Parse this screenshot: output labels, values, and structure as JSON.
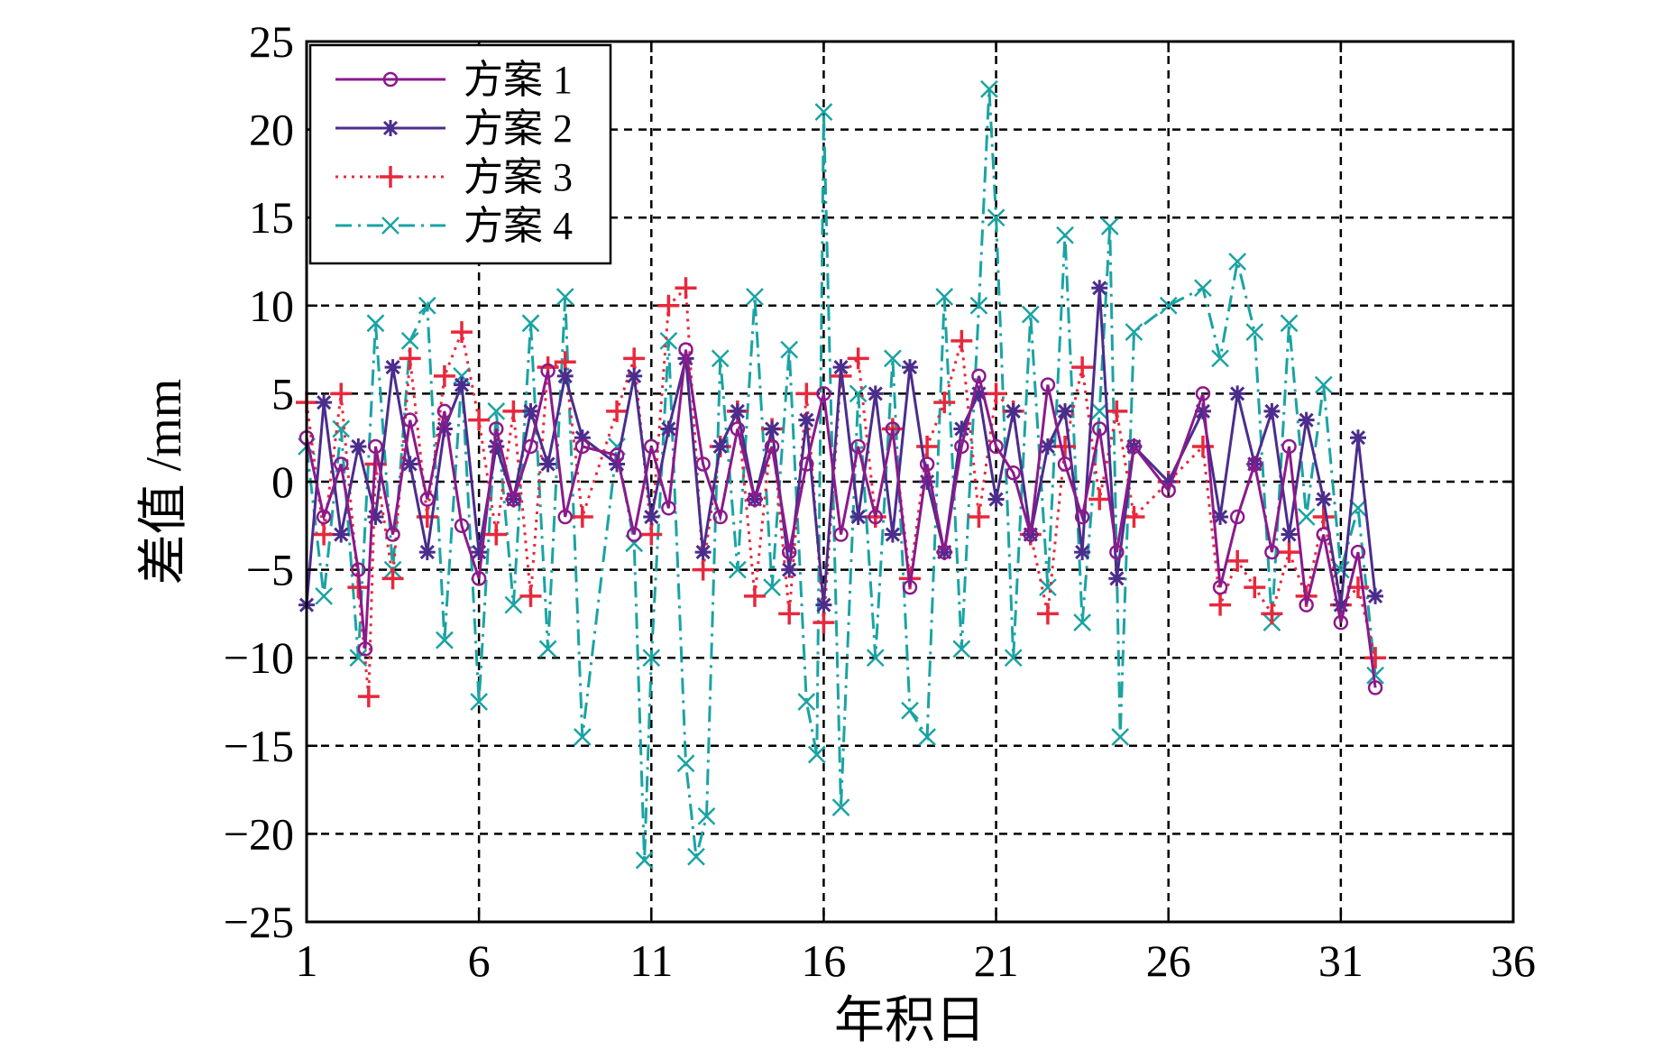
{
  "chart_data": {
    "type": "line",
    "xlabel": "年积日",
    "ylabel": "差值 /mm",
    "xlim": [
      1,
      36
    ],
    "ylim": [
      -25,
      25
    ],
    "xticks": [
      1,
      6,
      11,
      16,
      21,
      26,
      31,
      36
    ],
    "yticks": [
      -25,
      -20,
      -15,
      -10,
      -5,
      0,
      5,
      10,
      15,
      20,
      25
    ],
    "x_tick_labels": [
      "1",
      "6",
      "11",
      "16",
      "21",
      "26",
      "31",
      "36"
    ],
    "y_tick_labels": [
      "−25",
      "−20",
      "−15",
      "−10",
      "−5",
      "0",
      "5",
      "10",
      "15",
      "20",
      "25"
    ],
    "grid": true,
    "legend_position": "top-left",
    "series": [
      {
        "name": "方案 1",
        "color": "#8B1A8B",
        "marker": "circle",
        "line_style": "solid",
        "x": [
          1.0,
          1.5,
          2.0,
          2.5,
          2.7,
          3.0,
          3.5,
          4.0,
          4.5,
          5.0,
          5.5,
          6.0,
          6.5,
          7.0,
          7.5,
          8.0,
          8.5,
          9.0,
          10.0,
          10.5,
          11.0,
          11.5,
          12.0,
          12.5,
          13.0,
          13.5,
          14.0,
          14.5,
          15.0,
          15.5,
          16.0,
          16.5,
          17.0,
          17.5,
          18.0,
          18.5,
          19.0,
          19.5,
          20.0,
          20.5,
          21.0,
          21.5,
          22.0,
          22.5,
          23.0,
          23.5,
          24.0,
          24.5,
          25.0,
          26.0,
          27.0,
          27.5,
          28.0,
          28.5,
          29.0,
          29.5,
          30.0,
          30.5,
          31.0,
          31.5,
          32.0
        ],
        "y": [
          2.5,
          -2.0,
          1.0,
          -5.0,
          -9.5,
          2.0,
          -3.0,
          3.5,
          -1.0,
          4.0,
          -2.5,
          -5.5,
          3.0,
          -1.0,
          2.0,
          6.3,
          -2.0,
          2.0,
          1.5,
          -3.0,
          2.0,
          -1.5,
          7.5,
          1.0,
          -2.0,
          3.0,
          -1.0,
          2.0,
          -4.0,
          1.0,
          5.0,
          -3.0,
          2.0,
          -2.0,
          3.0,
          -6.0,
          1.0,
          -4.0,
          2.0,
          6.0,
          2.0,
          0.5,
          -3.0,
          5.5,
          1.0,
          -2.0,
          3.0,
          -4.0,
          2.0,
          -0.5,
          5.0,
          -6.0,
          -2.0,
          1.0,
          -4.0,
          2.0,
          -7.0,
          -3.0,
          -8.0,
          -4.0,
          -11.7
        ]
      },
      {
        "name": "方案 2",
        "color": "#4B2D8C",
        "marker": "star",
        "line_style": "solid",
        "x": [
          1.0,
          1.5,
          2.0,
          2.5,
          3.0,
          3.5,
          4.0,
          4.5,
          5.0,
          5.5,
          6.0,
          6.5,
          7.0,
          7.5,
          8.0,
          8.5,
          9.0,
          10.0,
          10.5,
          11.0,
          11.5,
          12.0,
          12.5,
          13.0,
          13.5,
          14.0,
          14.5,
          15.0,
          15.5,
          16.0,
          16.5,
          17.0,
          17.5,
          18.0,
          18.5,
          19.0,
          19.5,
          20.0,
          20.5,
          21.0,
          21.5,
          22.0,
          22.5,
          23.0,
          23.5,
          24.0,
          24.5,
          25.0,
          26.0,
          27.0,
          27.5,
          28.0,
          28.5,
          29.0,
          29.5,
          30.0,
          30.5,
          31.0,
          31.5,
          32.0
        ],
        "y": [
          -7.0,
          4.5,
          -3.0,
          2.0,
          -2.0,
          6.5,
          1.0,
          -4.0,
          3.0,
          5.5,
          -4.0,
          2.0,
          -1.0,
          4.0,
          1.0,
          6.0,
          2.5,
          1.0,
          6.0,
          -2.0,
          3.0,
          7.0,
          -4.0,
          2.0,
          4.0,
          -1.0,
          3.0,
          -5.0,
          3.5,
          -7.0,
          6.5,
          -2.0,
          5.0,
          -3.0,
          6.5,
          0.0,
          -4.0,
          3.0,
          5.0,
          -1.0,
          4.0,
          -3.0,
          2.0,
          4.0,
          -4.0,
          11.0,
          -5.5,
          2.0,
          0.0,
          4.0,
          -2.0,
          5.0,
          1.0,
          4.0,
          -3.0,
          3.5,
          -1.0,
          -7.0,
          2.5,
          -6.5
        ]
      },
      {
        "name": "方案 3",
        "color": "#E8283C",
        "marker": "plus",
        "line_style": "dotted",
        "x": [
          1.0,
          1.5,
          2.0,
          2.5,
          2.8,
          3.0,
          3.5,
          4.0,
          4.5,
          5.0,
          5.5,
          6.0,
          6.5,
          7.0,
          7.5,
          8.0,
          8.5,
          9.0,
          10.0,
          10.5,
          11.0,
          11.5,
          12.0,
          12.5,
          13.0,
          13.5,
          14.0,
          14.5,
          15.0,
          15.5,
          16.0,
          16.5,
          17.0,
          17.5,
          18.0,
          18.5,
          19.0,
          19.5,
          20.0,
          20.5,
          21.0,
          21.5,
          22.0,
          22.5,
          23.0,
          23.5,
          24.0,
          24.5,
          25.0,
          26.0,
          27.0,
          27.5,
          28.0,
          28.5,
          29.0,
          29.5,
          30.0,
          30.5,
          31.0,
          31.5,
          32.0
        ],
        "y": [
          4.5,
          -3.0,
          5.0,
          -6.0,
          -12.2,
          1.0,
          -5.5,
          7.0,
          -2.0,
          6.0,
          8.5,
          3.5,
          -3.0,
          4.0,
          -6.5,
          6.5,
          6.8,
          -2.0,
          4.0,
          7.0,
          -3.0,
          10.0,
          11.0,
          -5.0,
          2.0,
          4.0,
          -6.5,
          3.0,
          -7.5,
          5.0,
          -8.0,
          6.0,
          7.0,
          -2.0,
          3.0,
          -5.5,
          2.0,
          4.5,
          8.0,
          -2.0,
          5.0,
          4.0,
          -3.0,
          -7.5,
          2.0,
          6.5,
          -1.0,
          4.0,
          -2.0,
          0.0,
          2.0,
          -7.0,
          -4.5,
          -6.0,
          -7.5,
          -4.0,
          -6.5,
          -2.0,
          -7.0,
          -6.0,
          -10.0
        ]
      },
      {
        "name": "方案 4",
        "color": "#1AA3A3",
        "marker": "x",
        "line_style": "dash-dot",
        "x": [
          1.0,
          1.5,
          2.0,
          2.5,
          3.0,
          3.5,
          4.0,
          4.5,
          5.0,
          5.5,
          6.0,
          6.5,
          7.0,
          7.5,
          8.0,
          8.5,
          9.0,
          10.0,
          10.5,
          10.8,
          11.0,
          11.5,
          12.0,
          12.3,
          12.6,
          13.0,
          13.5,
          14.0,
          14.5,
          15.0,
          15.5,
          15.8,
          16.0,
          16.5,
          17.0,
          17.5,
          18.0,
          18.5,
          19.0,
          19.5,
          20.0,
          20.5,
          20.8,
          21.0,
          21.5,
          22.0,
          22.5,
          23.0,
          23.5,
          24.0,
          24.3,
          24.6,
          25.0,
          26.0,
          27.0,
          27.5,
          28.0,
          28.5,
          29.0,
          29.5,
          30.0,
          30.5,
          31.0,
          31.5,
          32.0
        ],
        "y": [
          2.0,
          -6.5,
          3.0,
          -10.0,
          9.0,
          -5.0,
          8.0,
          10.0,
          -9.0,
          6.0,
          -12.5,
          4.0,
          -7.0,
          9.0,
          -9.5,
          10.5,
          -14.5,
          2.0,
          -3.5,
          -21.5,
          -10.0,
          8.0,
          -16.0,
          -21.3,
          -19.0,
          7.0,
          -5.0,
          10.5,
          -6.0,
          7.5,
          -12.5,
          -15.5,
          21.0,
          -18.5,
          5.0,
          -10.0,
          7.0,
          -13.0,
          -14.5,
          10.5,
          -9.5,
          10.0,
          22.3,
          15.0,
          -10.0,
          9.5,
          -6.0,
          14.0,
          -8.0,
          4.0,
          14.5,
          -14.5,
          8.5,
          10.0,
          11.0,
          7.0,
          12.5,
          8.5,
          -8.0,
          9.0,
          -2.0,
          5.5,
          -5.0,
          -1.5,
          -11.0
        ]
      }
    ]
  }
}
